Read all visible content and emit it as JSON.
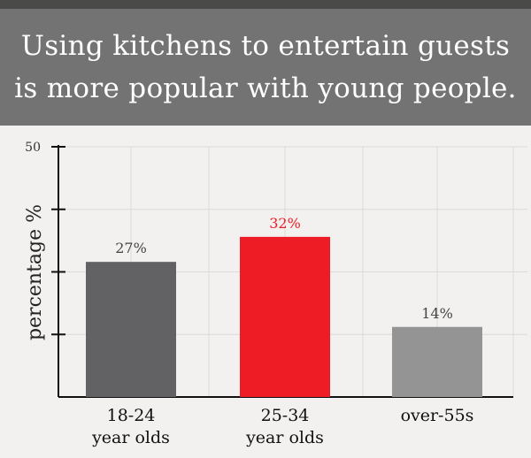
{
  "header": {
    "title_line1": "Using kitchens to entertain guests",
    "title_line2": "is more popular with young people."
  },
  "chart_data": {
    "type": "bar",
    "title": "Using kitchens to entertain guests is more popular with young people.",
    "ylabel": "percentage %",
    "xlabel": "",
    "ylim": [
      0,
      50
    ],
    "yticks": [
      0,
      12.5,
      25,
      37.5,
      50
    ],
    "ytick_labels": [
      "",
      "",
      "",
      "",
      "50"
    ],
    "grid": true,
    "categories": [
      {
        "line1": "18-24",
        "line2": "year olds"
      },
      {
        "line1": "25-34",
        "line2": "year olds"
      },
      {
        "line1": "over-55s",
        "line2": ""
      }
    ],
    "values": [
      27,
      32,
      14
    ],
    "value_labels": [
      "27%",
      "32%",
      "14%"
    ],
    "colors": [
      "#626264",
      "#ee1c25",
      "#949494"
    ],
    "label_colors": [
      "#444444",
      "#ee1c25",
      "#444444"
    ]
  }
}
